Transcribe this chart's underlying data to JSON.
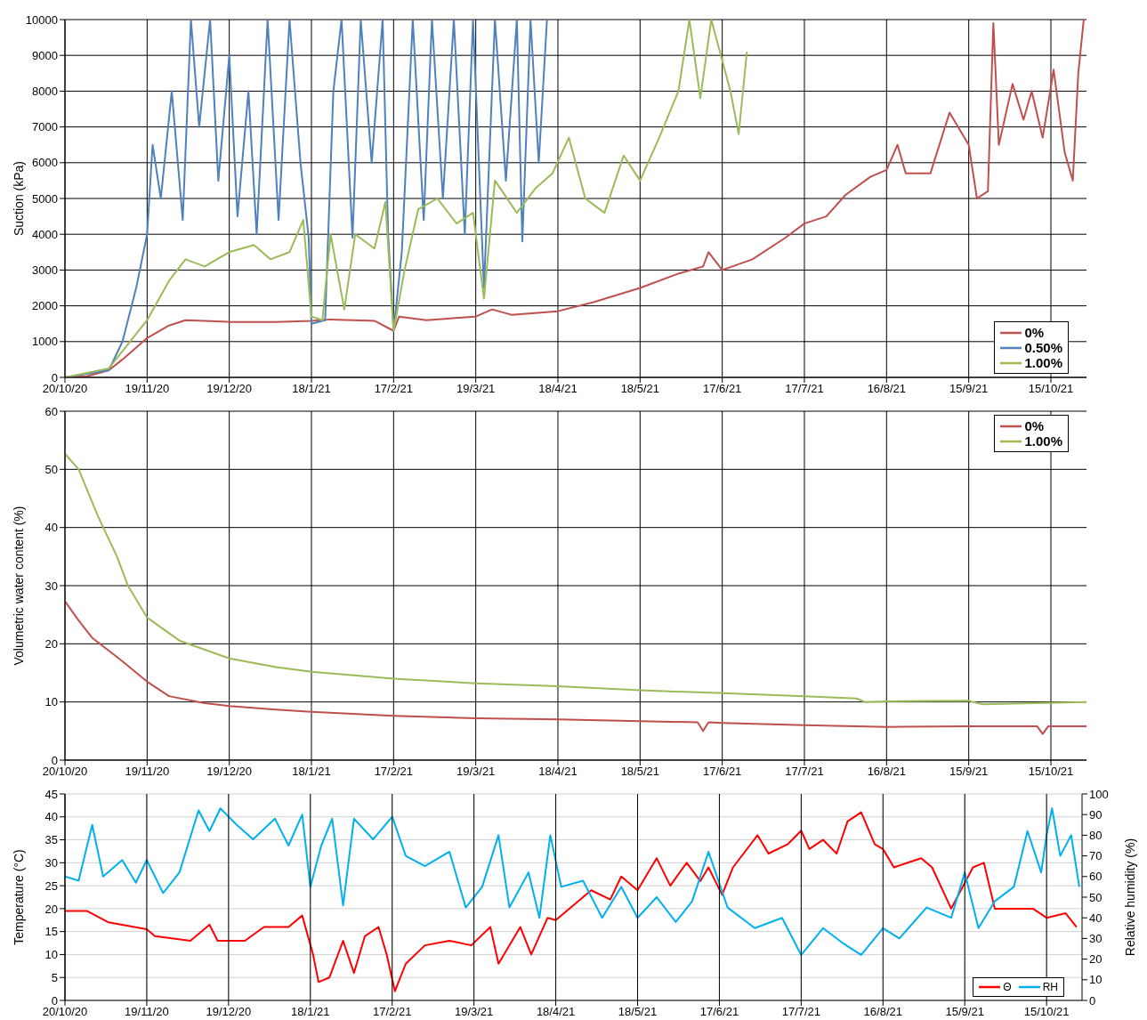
{
  "chart_data": [
    {
      "type": "line",
      "ylabel": "Suction (kPa)",
      "xlim": [
        "2020-10-20",
        "2021-10-28"
      ],
      "ylim": [
        0,
        10000
      ],
      "xticks": [
        {
          "value": "2020-10-20",
          "label": "20/10/20"
        },
        {
          "value": "2020-11-19",
          "label": "19/11/20"
        },
        {
          "value": "2020-12-19",
          "label": "19/12/20"
        },
        {
          "value": "2021-01-18",
          "label": "18/1/21"
        },
        {
          "value": "2021-02-17",
          "label": "17/2/21"
        },
        {
          "value": "2021-03-19",
          "label": "19/3/21"
        },
        {
          "value": "2021-04-18",
          "label": "18/4/21"
        },
        {
          "value": "2021-05-18",
          "label": "18/5/21"
        },
        {
          "value": "2021-06-17",
          "label": "17/6/21"
        },
        {
          "value": "2021-07-17",
          "label": "17/7/21"
        },
        {
          "value": "2021-08-16",
          "label": "16/8/21"
        },
        {
          "value": "2021-09-15",
          "label": "15/9/21"
        },
        {
          "value": "2021-10-15",
          "label": "15/10/21"
        }
      ],
      "yticks": [
        0,
        1000,
        2000,
        3000,
        4000,
        5000,
        6000,
        7000,
        8000,
        9000,
        10000
      ],
      "grid": true,
      "legend": "bottom right",
      "marker": "none",
      "series": [
        {
          "name": "0%",
          "color": "#c0504d",
          "x": [
            "2020-10-20",
            "2020-10-28",
            "2020-11-05",
            "2020-11-10",
            "2020-11-19",
            "2020-11-27",
            "2020-12-03",
            "2020-12-19",
            "2021-01-05",
            "2021-01-18",
            "2021-01-25",
            "2021-02-10",
            "2021-02-17",
            "2021-02-19",
            "2021-03-01",
            "2021-03-19",
            "2021-03-25",
            "2021-04-01",
            "2021-04-18",
            "2021-05-01",
            "2021-05-18",
            "2021-06-01",
            "2021-06-10",
            "2021-06-12",
            "2021-06-17",
            "2021-06-28",
            "2021-07-10",
            "2021-07-17",
            "2021-07-25",
            "2021-08-01",
            "2021-08-10",
            "2021-08-16",
            "2021-08-20",
            "2021-08-23",
            "2021-09-01",
            "2021-09-08",
            "2021-09-15",
            "2021-09-18",
            "2021-09-22",
            "2021-09-24",
            "2021-09-26",
            "2021-10-01",
            "2021-10-05",
            "2021-10-08",
            "2021-10-12",
            "2021-10-16",
            "2021-10-20",
            "2021-10-23",
            "2021-10-25",
            "2021-10-27"
          ],
          "values": [
            0,
            30,
            200,
            500,
            1100,
            1450,
            1600,
            1550,
            1550,
            1580,
            1620,
            1580,
            1300,
            1700,
            1600,
            1700,
            1900,
            1750,
            1850,
            2100,
            2500,
            2900,
            3100,
            3500,
            3000,
            3300,
            3900,
            4300,
            4500,
            5100,
            5600,
            5800,
            6500,
            5700,
            5700,
            7400,
            6500,
            5000,
            5200,
            9900,
            6500,
            8200,
            7200,
            8000,
            6700,
            8600,
            6300,
            5500,
            8500,
            10000
          ]
        },
        {
          "name": "0.50%",
          "color": "#4f81bd",
          "x": [
            "2020-10-20",
            "2020-11-05",
            "2020-11-10",
            "2020-11-15",
            "2020-11-19",
            "2020-11-21",
            "2020-11-24",
            "2020-11-28",
            "2020-12-02",
            "2020-12-05",
            "2020-12-08",
            "2020-12-12",
            "2020-12-15",
            "2020-12-19",
            "2020-12-22",
            "2020-12-26",
            "2020-12-29",
            "2021-01-02",
            "2021-01-06",
            "2021-01-10",
            "2021-01-14",
            "2021-01-17",
            "2021-01-18",
            "2021-01-23",
            "2021-01-26",
            "2021-01-29",
            "2021-02-02",
            "2021-02-05",
            "2021-02-09",
            "2021-02-13",
            "2021-02-15",
            "2021-02-17",
            "2021-02-20",
            "2021-02-24",
            "2021-02-28",
            "2021-03-03",
            "2021-03-07",
            "2021-03-11",
            "2021-03-15",
            "2021-03-18",
            "2021-03-22",
            "2021-03-26",
            "2021-03-30",
            "2021-04-03",
            "2021-04-05",
            "2021-04-08",
            "2021-04-11",
            "2021-04-14"
          ],
          "values": [
            0,
            200,
            1000,
            2500,
            4000,
            6500,
            5000,
            8000,
            4400,
            10000,
            7000,
            10000,
            5500,
            9000,
            4500,
            8000,
            4000,
            10000,
            4400,
            10000,
            6000,
            3900,
            1500,
            1600,
            8000,
            10000,
            3900,
            10000,
            6000,
            10000,
            4000,
            1300,
            3500,
            10000,
            4400,
            10000,
            5000,
            10000,
            4000,
            10000,
            2500,
            10000,
            5500,
            10000,
            3800,
            10000,
            6000,
            10000
          ]
        },
        {
          "name": "1.00%",
          "color": "#9bbb59",
          "x": [
            "2020-10-20",
            "2020-11-05",
            "2020-11-19",
            "2020-11-27",
            "2020-12-03",
            "2020-12-10",
            "2020-12-19",
            "2020-12-28",
            "2021-01-03",
            "2021-01-10",
            "2021-01-15",
            "2021-01-18",
            "2021-01-22",
            "2021-01-25",
            "2021-01-30",
            "2021-02-03",
            "2021-02-10",
            "2021-02-14",
            "2021-02-17",
            "2021-02-21",
            "2021-02-26",
            "2021-03-05",
            "2021-03-12",
            "2021-03-18",
            "2021-03-22",
            "2021-03-26",
            "2021-04-03",
            "2021-04-10",
            "2021-04-16",
            "2021-04-22",
            "2021-04-28",
            "2021-05-05",
            "2021-05-12",
            "2021-05-18",
            "2021-05-25",
            "2021-06-01",
            "2021-06-05",
            "2021-06-09",
            "2021-06-13",
            "2021-06-20",
            "2021-06-23",
            "2021-06-26"
          ],
          "values": [
            0,
            250,
            1600,
            2700,
            3300,
            3100,
            3500,
            3700,
            3300,
            3500,
            4400,
            1700,
            1600,
            4000,
            1900,
            4000,
            3600,
            4900,
            1300,
            3000,
            4700,
            5000,
            4300,
            4600,
            2200,
            5500,
            4600,
            5300,
            5700,
            6700,
            5000,
            4600,
            6200,
            5500,
            6700,
            8000,
            10000,
            7800,
            10000,
            8000,
            6800,
            9100
          ]
        }
      ]
    },
    {
      "type": "line",
      "ylabel": "Volumetric water content (%)",
      "xlim": [
        "2020-10-20",
        "2021-10-28"
      ],
      "ylim": [
        0,
        60
      ],
      "xticks": [
        {
          "value": "2020-10-20",
          "label": "20/10/20"
        },
        {
          "value": "2020-11-19",
          "label": "19/11/20"
        },
        {
          "value": "2020-12-19",
          "label": "19/12/20"
        },
        {
          "value": "2021-01-18",
          "label": "18/1/21"
        },
        {
          "value": "2021-02-17",
          "label": "17/2/21"
        },
        {
          "value": "2021-03-19",
          "label": "19/3/21"
        },
        {
          "value": "2021-04-18",
          "label": "18/4/21"
        },
        {
          "value": "2021-05-18",
          "label": "18/5/21"
        },
        {
          "value": "2021-06-17",
          "label": "17/6/21"
        },
        {
          "value": "2021-07-17",
          "label": "17/7/21"
        },
        {
          "value": "2021-08-16",
          "label": "16/8/21"
        },
        {
          "value": "2021-09-15",
          "label": "15/9/21"
        },
        {
          "value": "2021-10-15",
          "label": "15/10/21"
        }
      ],
      "yticks": [
        0,
        10,
        20,
        30,
        40,
        50,
        60
      ],
      "grid": true,
      "legend": "top right",
      "marker": "none",
      "series": [
        {
          "name": "0%",
          "color": "#c0504d",
          "x": [
            "2020-10-20",
            "2020-10-25",
            "2020-10-30",
            "2020-11-10",
            "2020-11-19",
            "2020-11-27",
            "2020-12-10",
            "2020-12-19",
            "2021-01-05",
            "2021-01-18",
            "2021-02-17",
            "2021-03-19",
            "2021-04-18",
            "2021-05-18",
            "2021-06-08",
            "2021-06-10",
            "2021-06-12",
            "2021-06-17",
            "2021-07-17",
            "2021-08-16",
            "2021-09-15",
            "2021-10-10",
            "2021-10-12",
            "2021-10-14",
            "2021-10-28"
          ],
          "values": [
            27.3,
            24,
            21,
            17,
            13.5,
            11,
            9.8,
            9.3,
            8.7,
            8.3,
            7.6,
            7.2,
            7,
            6.7,
            6.5,
            5,
            6.5,
            6.4,
            6,
            5.7,
            5.8,
            5.8,
            4.5,
            5.8,
            5.8
          ]
        },
        {
          "name": "1.00%",
          "color": "#9bbb59",
          "x": [
            "2020-10-20",
            "2020-10-25",
            "2020-11-01",
            "2020-11-08",
            "2020-11-12",
            "2020-11-19",
            "2020-12-01",
            "2020-12-19",
            "2021-01-05",
            "2021-01-18",
            "2021-02-17",
            "2021-03-19",
            "2021-04-18",
            "2021-05-18",
            "2021-06-17",
            "2021-07-17",
            "2021-08-05",
            "2021-08-08",
            "2021-08-16",
            "2021-09-15",
            "2021-09-20",
            "2021-10-28"
          ],
          "values": [
            52.7,
            50,
            42,
            35,
            30,
            24.5,
            20.5,
            17.5,
            16,
            15.2,
            14,
            13.2,
            12.7,
            12,
            11.5,
            11,
            10.6,
            10,
            10.1,
            10.2,
            9.6,
            10
          ]
        }
      ]
    },
    {
      "type": "line",
      "ylabel": "Temperature (°C)",
      "y2label": "Relative humidity (%)",
      "xlim": [
        "2020-10-20",
        "2021-10-28"
      ],
      "ylim": [
        0,
        45
      ],
      "y2lim": [
        0,
        100
      ],
      "xticks": [
        {
          "value": "2020-10-20",
          "label": "20/10/20"
        },
        {
          "value": "2020-11-19",
          "label": "19/11/20"
        },
        {
          "value": "2020-12-19",
          "label": "19/12/20"
        },
        {
          "value": "2021-01-18",
          "label": "18/1/21"
        },
        {
          "value": "2021-02-17",
          "label": "17/2/21"
        },
        {
          "value": "2021-03-19",
          "label": "19/3/21"
        },
        {
          "value": "2021-04-18",
          "label": "18/4/21"
        },
        {
          "value": "2021-05-18",
          "label": "18/5/21"
        },
        {
          "value": "2021-06-17",
          "label": "17/6/21"
        },
        {
          "value": "2021-07-17",
          "label": "17/7/21"
        },
        {
          "value": "2021-08-16",
          "label": "16/8/21"
        },
        {
          "value": "2021-09-15",
          "label": "15/9/21"
        },
        {
          "value": "2021-10-15",
          "label": "15/10/21"
        }
      ],
      "yticks": [
        0,
        5,
        10,
        15,
        20,
        25,
        30,
        35,
        40,
        45
      ],
      "y2ticks": [
        0,
        10,
        20,
        30,
        40,
        50,
        60,
        70,
        80,
        90,
        100
      ],
      "grid": true,
      "legend": "bottom right",
      "marker": "none",
      "series": [
        {
          "name": "Θ",
          "color": "#ff0000",
          "x": [
            "2020-10-20",
            "2020-10-28",
            "2020-11-05",
            "2020-11-19",
            "2020-11-22",
            "2020-12-05",
            "2020-12-12",
            "2020-12-15",
            "2020-12-25",
            "2021-01-01",
            "2021-01-10",
            "2021-01-15",
            "2021-01-19",
            "2021-01-21",
            "2021-01-25",
            "2021-01-30",
            "2021-02-03",
            "2021-02-07",
            "2021-02-12",
            "2021-02-15",
            "2021-02-18",
            "2021-02-22",
            "2021-03-01",
            "2021-03-10",
            "2021-03-18",
            "2021-03-25",
            "2021-03-28",
            "2021-04-05",
            "2021-04-09",
            "2021-04-15",
            "2021-04-18",
            "2021-04-25",
            "2021-05-01",
            "2021-05-08",
            "2021-05-12",
            "2021-05-18",
            "2021-05-25",
            "2021-05-30",
            "2021-06-05",
            "2021-06-10",
            "2021-06-13",
            "2021-06-18",
            "2021-06-22",
            "2021-07-01",
            "2021-07-05",
            "2021-07-12",
            "2021-07-17",
            "2021-07-20",
            "2021-07-25",
            "2021-07-30",
            "2021-08-03",
            "2021-08-08",
            "2021-08-13",
            "2021-08-16",
            "2021-08-20",
            "2021-08-30",
            "2021-09-03",
            "2021-09-10",
            "2021-09-18",
            "2021-09-22",
            "2021-09-26",
            "2021-10-01",
            "2021-10-10",
            "2021-10-15",
            "2021-10-22",
            "2021-10-26"
          ],
          "values": [
            19.5,
            19.5,
            17,
            15.5,
            14,
            13,
            16.5,
            13,
            13,
            16,
            16,
            18.5,
            10,
            4,
            5,
            13,
            6,
            14,
            16,
            10,
            2,
            8,
            12,
            13,
            12,
            16,
            8,
            16,
            10,
            18,
            17.5,
            21,
            24,
            22,
            27,
            24,
            31,
            25,
            30,
            26,
            29,
            23,
            29,
            36,
            32,
            34,
            37,
            33,
            35,
            32,
            39,
            41,
            34,
            33,
            29,
            31,
            29,
            20,
            29,
            30,
            20,
            20,
            20,
            18,
            19,
            16
          ]
        },
        {
          "name": "RH",
          "color": "#00b0f0",
          "axis": "y2",
          "x": [
            "2020-10-20",
            "2020-10-25",
            "2020-10-30",
            "2020-11-03",
            "2020-11-10",
            "2020-11-15",
            "2020-11-19",
            "2020-11-25",
            "2020-12-01",
            "2020-12-08",
            "2020-12-12",
            "2020-12-16",
            "2020-12-22",
            "2020-12-28",
            "2021-01-05",
            "2021-01-10",
            "2021-01-15",
            "2021-01-18",
            "2021-01-22",
            "2021-01-26",
            "2021-01-30",
            "2021-02-03",
            "2021-02-10",
            "2021-02-17",
            "2021-02-22",
            "2021-03-01",
            "2021-03-10",
            "2021-03-16",
            "2021-03-22",
            "2021-03-28",
            "2021-04-01",
            "2021-04-08",
            "2021-04-12",
            "2021-04-16",
            "2021-04-20",
            "2021-04-28",
            "2021-05-05",
            "2021-05-12",
            "2021-05-18",
            "2021-05-25",
            "2021-06-01",
            "2021-06-07",
            "2021-06-13",
            "2021-06-20",
            "2021-06-30",
            "2021-07-10",
            "2021-07-17",
            "2021-07-25",
            "2021-08-01",
            "2021-08-08",
            "2021-08-16",
            "2021-08-22",
            "2021-09-01",
            "2021-09-10",
            "2021-09-15",
            "2021-09-20",
            "2021-09-26",
            "2021-10-03",
            "2021-10-08",
            "2021-10-13",
            "2021-10-15",
            "2021-10-17",
            "2021-10-20",
            "2021-10-24",
            "2021-10-27"
          ],
          "values": [
            60,
            58,
            85,
            60,
            68,
            57,
            68,
            52,
            62,
            92,
            82,
            93,
            85,
            78,
            88,
            75,
            90,
            55,
            75,
            88,
            46,
            88,
            78,
            89,
            70,
            65,
            72,
            45,
            55,
            80,
            45,
            62,
            40,
            80,
            55,
            58,
            40,
            55,
            40,
            50,
            38,
            48,
            72,
            45,
            35,
            40,
            22,
            35,
            28,
            22,
            35,
            30,
            45,
            40,
            62,
            35,
            48,
            55,
            82,
            62,
            80,
            93,
            70,
            80,
            55
          ]
        }
      ]
    }
  ]
}
